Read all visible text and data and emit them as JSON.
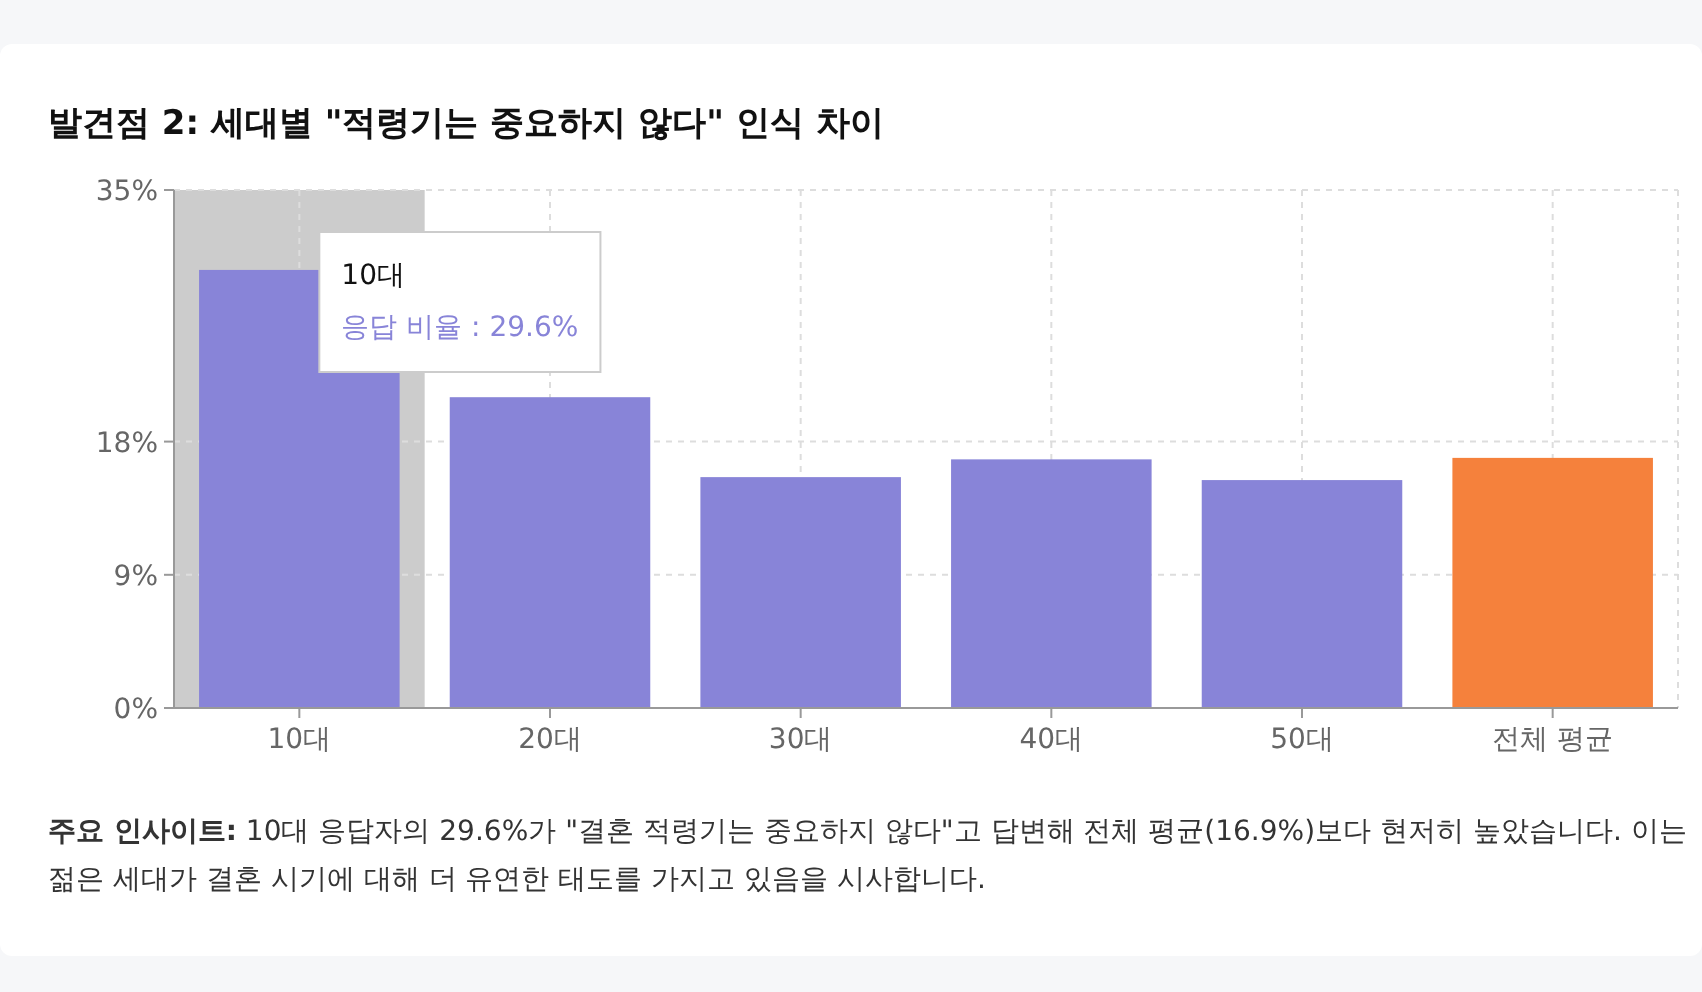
{
  "chart_data": {
    "type": "bar",
    "title": "발견점 2: 세대별 \"적령기는 중요하지 않다\" 인식 차이",
    "categories": [
      "10대",
      "20대",
      "30대",
      "40대",
      "50대",
      "전체 평균"
    ],
    "values": [
      29.6,
      21.0,
      15.6,
      16.8,
      15.4,
      16.9
    ],
    "colors": [
      "#8884d8",
      "#8884d8",
      "#8884d8",
      "#8884d8",
      "#8884d8",
      "#f5813c"
    ],
    "ylim": [
      0,
      35
    ],
    "yticks": [
      {
        "value": 0,
        "label": "0%"
      },
      {
        "value": 9,
        "label": "9%"
      },
      {
        "value": 18,
        "label": "18%"
      },
      {
        "value": 35,
        "label": "35%"
      }
    ],
    "grid": true,
    "bands": [
      {
        "axis": "x",
        "from": "10대",
        "to": "10대",
        "color": "#cccccc"
      }
    ],
    "annotations": [
      "10대",
      "응답 비율 : 29.6%",
      "주요 인사이트: 10대 응답자의 29.6%가 \"결혼 적령기는 중요하지 않다\"고 답변해 전체 평균(16.9%)보다 현저히 높았습니다. 이는 젊은 세대가 결혼 시기에 대해 더 유연한 태도를 가지고 있음을 시사합니다."
    ]
  }
}
